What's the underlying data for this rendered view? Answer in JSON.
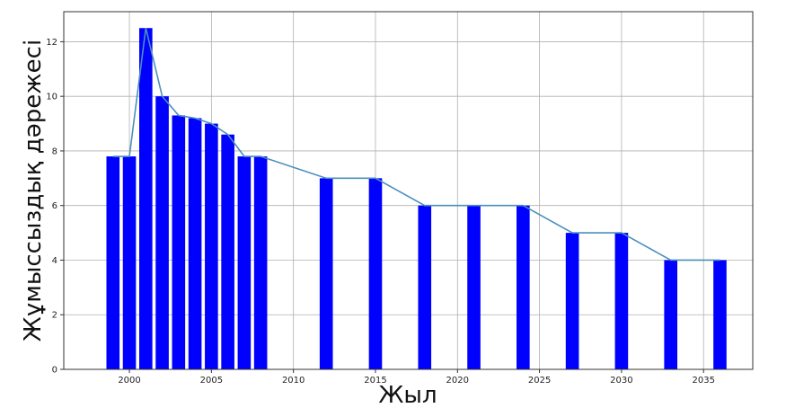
{
  "chart_data": {
    "type": "bar",
    "xlabel": "Жыл",
    "ylabel": "Жұмыссыздық дәрежесі",
    "xlim": [
      1996,
      2038
    ],
    "ylim": [
      0,
      13.1
    ],
    "x_ticks": [
      2000,
      2005,
      2010,
      2015,
      2020,
      2025,
      2030,
      2035
    ],
    "y_ticks": [
      0,
      2,
      4,
      6,
      8,
      10,
      12
    ],
    "grid": true,
    "bar_color": "#0000ff",
    "line_color": "#4c8fbd",
    "x": [
      1999,
      2000,
      2001,
      2002,
      2003,
      2004,
      2005,
      2006,
      2007,
      2008,
      2012,
      2015,
      2018,
      2021,
      2024,
      2027,
      2030,
      2033,
      2036
    ],
    "values": [
      7.8,
      7.8,
      12.5,
      10.0,
      9.3,
      9.2,
      9.0,
      8.6,
      7.8,
      7.8,
      7.0,
      7.0,
      6.0,
      6.0,
      6.0,
      5.0,
      5.0,
      4.0,
      4.0
    ]
  }
}
